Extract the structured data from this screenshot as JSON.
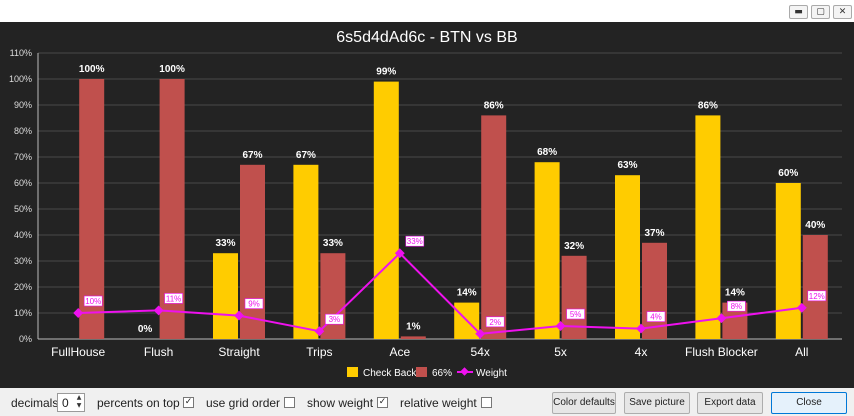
{
  "window": {
    "minimize": "▬",
    "maximize": "▢",
    "close": "✕"
  },
  "chart_data": {
    "type": "bar",
    "title": "6s5d4dAd6c - BTN vs BB",
    "categories": [
      "FullHouse",
      "Flush",
      "Straight",
      "Trips",
      "Ace",
      "54x",
      "5x",
      "4x",
      "Flush Blocker",
      "All"
    ],
    "series": [
      {
        "name": "Check Back",
        "color": "#ffcc00",
        "values": [
          null,
          0,
          33,
          67,
          99,
          14,
          68,
          63,
          86,
          60
        ],
        "labels": [
          "",
          "0%",
          "33%",
          "67%",
          "99%",
          "14%",
          "68%",
          "63%",
          "86%",
          "60%"
        ]
      },
      {
        "name": "66%",
        "color": "#c0504d",
        "values": [
          100,
          100,
          67,
          33,
          1,
          86,
          32,
          37,
          14,
          40
        ],
        "labels": [
          "100%",
          "100%",
          "67%",
          "33%",
          "1%",
          "86%",
          "32%",
          "37%",
          "14%",
          "40%"
        ]
      }
    ],
    "weight": {
      "name": "Weight",
      "color": "#ee11ee",
      "values": [
        10,
        11,
        9,
        3,
        33,
        2,
        5,
        4,
        8,
        12
      ],
      "labels": [
        "10%",
        "11%",
        "9%",
        "3%",
        "33%",
        "2%",
        "5%",
        "4%",
        "8%",
        "12%"
      ]
    },
    "yticks": [
      "0%",
      "10%",
      "20%",
      "30%",
      "40%",
      "50%",
      "60%",
      "70%",
      "80%",
      "90%",
      "100%",
      "110%"
    ],
    "ylim": [
      0,
      110
    ],
    "grid": true,
    "legend_position": "bottom"
  },
  "controls": {
    "decimals_label": "decimals",
    "decimals_value": "0",
    "percents_on_top_label": "percents on top",
    "percents_on_top_checked": "✓",
    "use_grid_order_label": "use grid order",
    "use_grid_order_checked": "",
    "show_weight_label": "show weight",
    "show_weight_checked": "✓",
    "relative_weight_label": "relative weight",
    "relative_weight_checked": "",
    "color_defaults": "Color defaults",
    "save_picture": "Save picture",
    "export_data": "Export data",
    "close": "Close"
  }
}
